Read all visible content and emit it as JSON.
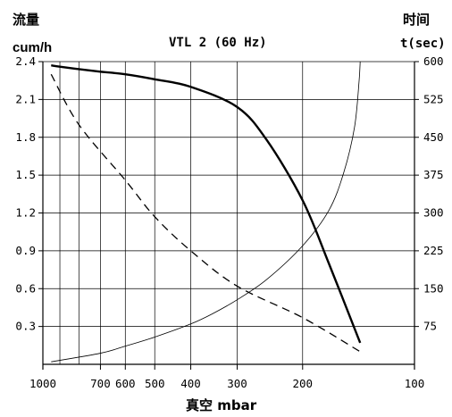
{
  "chart_data": {
    "type": "line",
    "title": "VTL 2 (60 Hz)",
    "y_left": {
      "label_cn": "流量",
      "unit": "cum/h",
      "ticks": [
        "2.4",
        "2.1",
        "1.8",
        "1.5",
        "1.2",
        "0.9",
        "0.6",
        "0.3"
      ],
      "tick_values": [
        2.4,
        2.1,
        1.8,
        1.5,
        1.2,
        0.9,
        0.6,
        0.3
      ],
      "range": [
        0,
        2.4
      ]
    },
    "y_right": {
      "label_cn": "时间",
      "unit": "t(sec)",
      "ticks": [
        "600",
        "525",
        "450",
        "375",
        "300",
        "225",
        "150",
        "75"
      ],
      "tick_values": [
        600,
        525,
        450,
        375,
        300,
        225,
        150,
        75
      ],
      "range": [
        0,
        600
      ]
    },
    "x_axis": {
      "label": "真空 mbar",
      "scale": "log",
      "reversed": true,
      "range": [
        1000,
        100
      ],
      "tick_values": [
        1000,
        700,
        600,
        500,
        400,
        300,
        200,
        100
      ],
      "tick_labels": [
        "1000",
        "700",
        "600",
        "500",
        "400",
        "300",
        "200",
        "100"
      ],
      "gridlines": [
        1000,
        900,
        800,
        700,
        600,
        500,
        400,
        300,
        200,
        100
      ]
    },
    "series": [
      {
        "style": "thick-solid",
        "axis": "left",
        "points": [
          [
            950,
            2.37
          ],
          [
            900,
            2.36
          ],
          [
            800,
            2.34
          ],
          [
            700,
            2.32
          ],
          [
            600,
            2.3
          ],
          [
            500,
            2.26
          ],
          [
            400,
            2.2
          ],
          [
            300,
            2.04
          ],
          [
            250,
            1.78
          ],
          [
            200,
            1.3
          ],
          [
            170,
            0.8
          ],
          [
            140,
            0.17
          ]
        ]
      },
      {
        "style": "dashed",
        "axis": "left",
        "points": [
          [
            950,
            2.3
          ],
          [
            800,
            1.9
          ],
          [
            600,
            1.46
          ],
          [
            500,
            1.17
          ],
          [
            400,
            0.9
          ],
          [
            300,
            0.62
          ],
          [
            200,
            0.37
          ],
          [
            140,
            0.1
          ]
        ]
      },
      {
        "style": "thin-solid",
        "axis": "right",
        "points": [
          [
            950,
            5
          ],
          [
            700,
            22
          ],
          [
            600,
            36
          ],
          [
            500,
            54
          ],
          [
            400,
            80
          ],
          [
            350,
            100
          ],
          [
            300,
            128
          ],
          [
            250,
            168
          ],
          [
            200,
            235
          ],
          [
            170,
            305
          ],
          [
            155,
            380
          ],
          [
            145,
            470
          ],
          [
            141,
            560
          ],
          [
            140,
            600
          ]
        ]
      }
    ]
  }
}
